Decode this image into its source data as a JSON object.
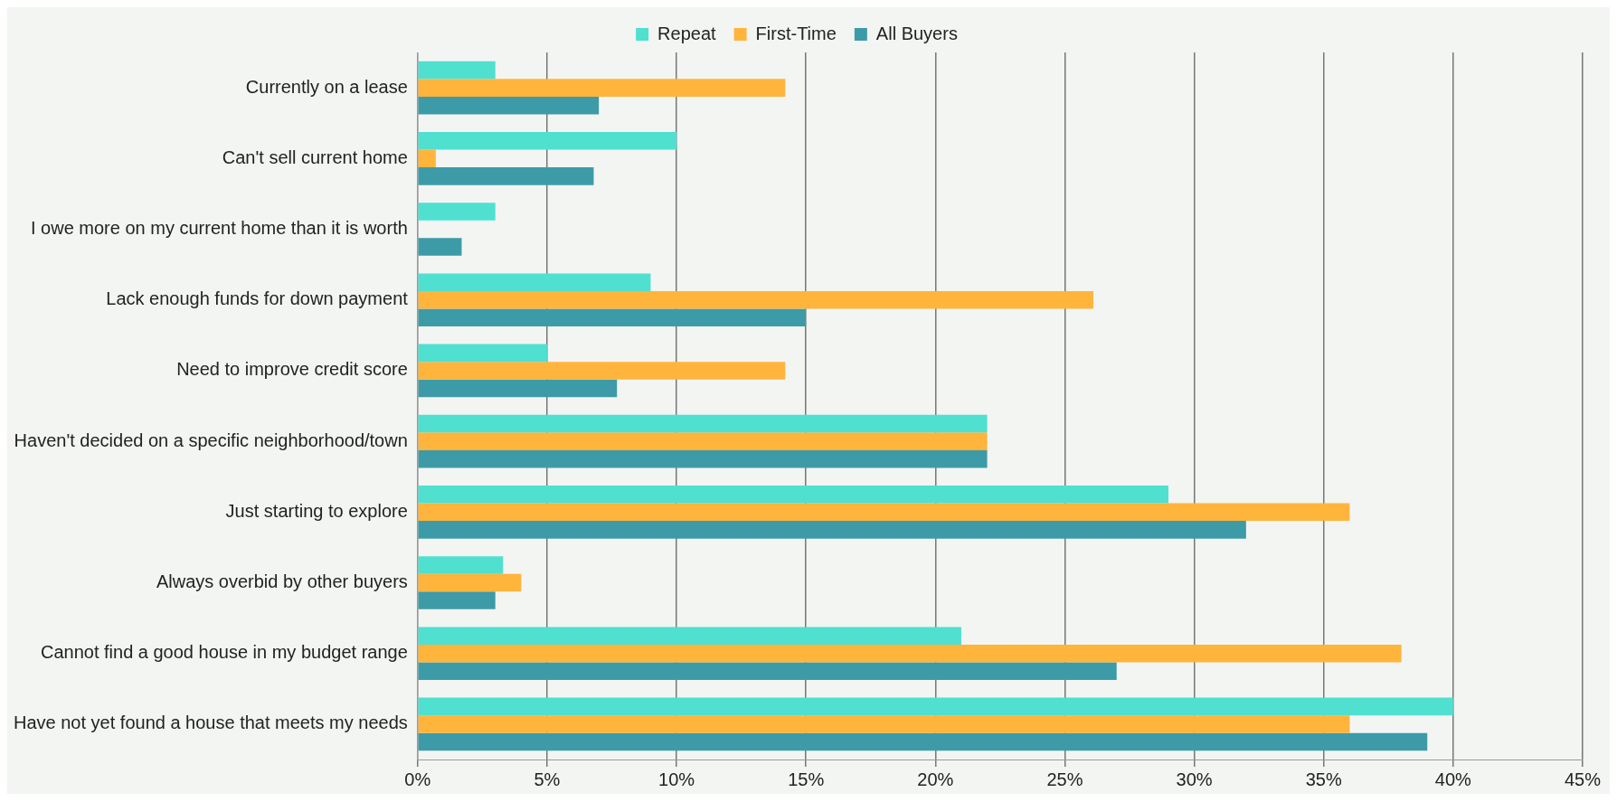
{
  "chart_data": {
    "type": "bar",
    "orientation": "horizontal",
    "categories": [
      "Currently on a lease",
      "Can't sell current home",
      "I owe more on my current home than it is worth",
      "Lack enough funds for down payment",
      "Need to improve credit score",
      "Haven't decided on a specific neighborhood/town",
      "Just starting to explore",
      "Always overbid by other buyers",
      "Cannot find a good house in my budget range",
      "Have not yet found a house that meets my needs"
    ],
    "series": [
      {
        "name": "Repeat",
        "color": "#4fe0d0",
        "values": [
          3,
          10,
          3,
          9,
          5,
          22,
          29,
          3.3,
          21,
          40
        ]
      },
      {
        "name": "First-Time",
        "color": "#ffb43c",
        "values": [
          14.2,
          0.7,
          0,
          26.1,
          14.2,
          22,
          36,
          4,
          38,
          36
        ]
      },
      {
        "name": "All Buyers",
        "color": "#3d9ba8",
        "values": [
          7,
          6.8,
          1.7,
          15,
          7.7,
          22,
          32,
          3,
          27,
          39
        ]
      }
    ],
    "xlim": [
      0,
      45
    ],
    "xticks": [
      {
        "value": 0,
        "label": "0%"
      },
      {
        "value": 5,
        "label": "5%"
      },
      {
        "value": 10,
        "label": "10%"
      },
      {
        "value": 15,
        "label": "15%"
      },
      {
        "value": 20,
        "label": "20%"
      },
      {
        "value": 25,
        "label": "25%"
      },
      {
        "value": 30,
        "label": "30%"
      },
      {
        "value": 35,
        "label": "35%"
      },
      {
        "value": 40,
        "label": "40%"
      },
      {
        "value": 45,
        "label": "45%"
      }
    ],
    "grid": "x",
    "legend": "top"
  }
}
